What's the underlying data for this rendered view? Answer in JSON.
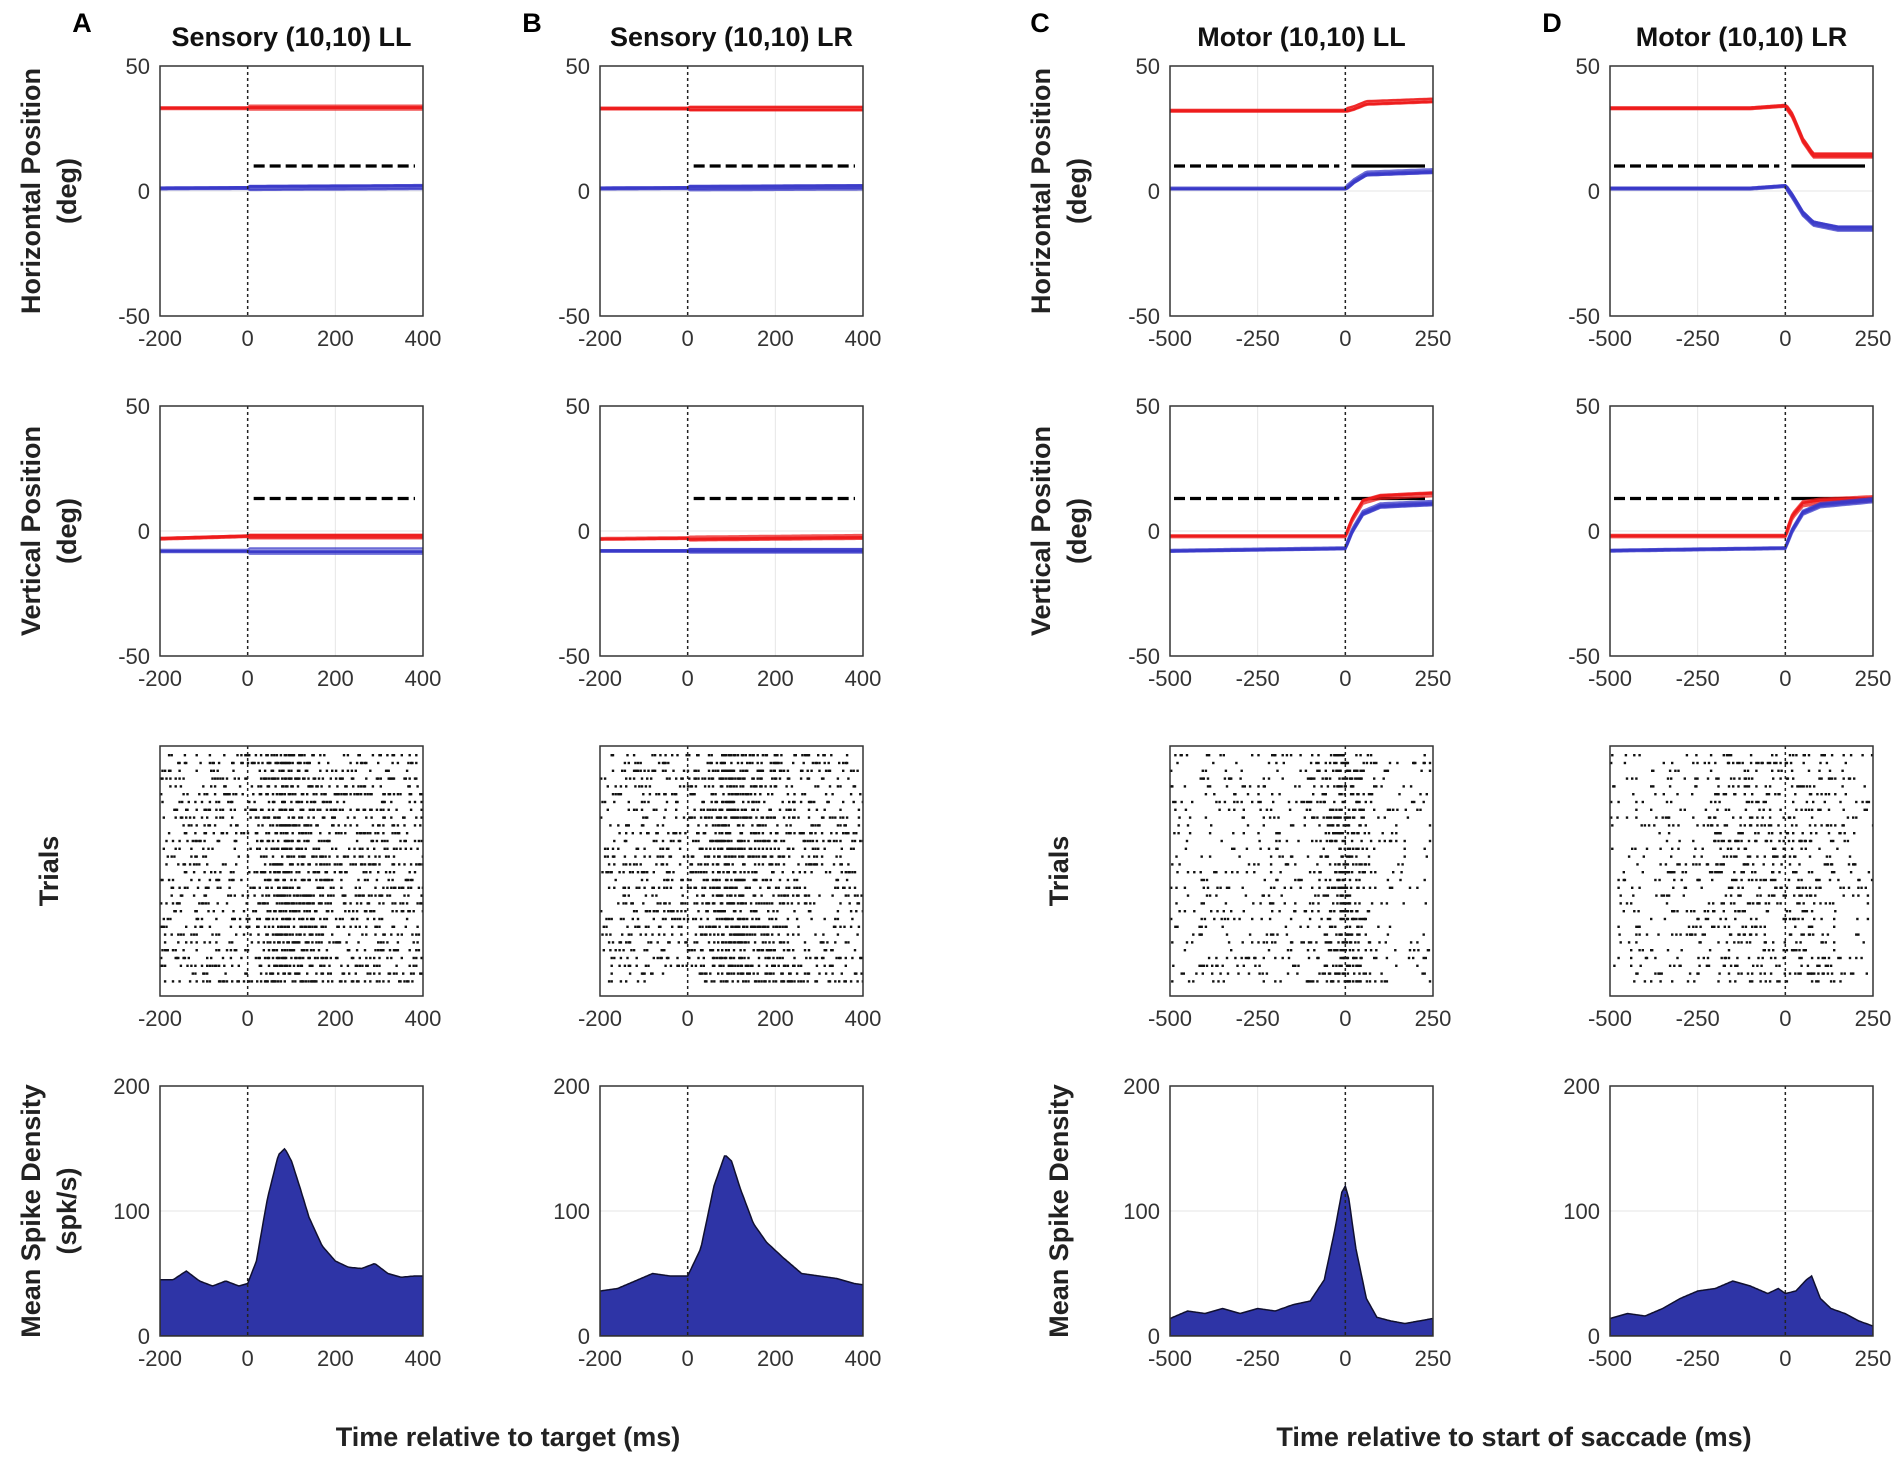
{
  "figure": {
    "xlabels": {
      "sensory": "Time relative to target (ms)",
      "motor": "Time relative to start of saccade (ms)"
    },
    "row_labels": {
      "horizontal": [
        "Horizontal Position",
        "(deg)"
      ],
      "vertical": [
        "Vertical Position",
        "(deg)"
      ],
      "raster": [
        "Trials"
      ],
      "density": [
        "Mean Spike Density",
        "(spk/s)"
      ]
    },
    "colors": {
      "red_trace": "#ee1c1c",
      "blue_trace": "#3a3ac8",
      "density_fill": "#2e34a6",
      "dashed_target": "#000000"
    }
  },
  "chart_data": [
    {
      "type": "line",
      "panel": "A",
      "column_title": "Sensory (10,10) LL",
      "row": "horizontal",
      "ylabel": "Horizontal Position (deg)",
      "xlim": [
        -200,
        400
      ],
      "ylim": [
        -50,
        50
      ],
      "xticks": [
        "-200",
        "0",
        "200",
        "400"
      ],
      "yticks": [
        "50",
        "0",
        "-50"
      ],
      "series": [
        {
          "name": "red",
          "x": [
            -200,
            400
          ],
          "y": [
            33,
            33
          ]
        },
        {
          "name": "blue",
          "x": [
            -200,
            400
          ],
          "y": [
            1,
            1.5
          ]
        }
      ],
      "target_segments": [
        {
          "x": [
            0,
            400
          ],
          "y": 10,
          "style": "dashed"
        }
      ]
    },
    {
      "type": "line",
      "panel": "B",
      "column_title": "Sensory (10,10) LR",
      "row": "horizontal",
      "ylabel": "Horizontal Position (deg)",
      "xlim": [
        -200,
        400
      ],
      "ylim": [
        -50,
        50
      ],
      "xticks": [
        "-200",
        "0",
        "200",
        "400"
      ],
      "yticks": [
        "50",
        "0",
        "-50"
      ],
      "series": [
        {
          "name": "red",
          "x": [
            -200,
            400
          ],
          "y": [
            33,
            33
          ]
        },
        {
          "name": "blue",
          "x": [
            -200,
            400
          ],
          "y": [
            1,
            1.5
          ]
        }
      ],
      "target_segments": [
        {
          "x": [
            0,
            400
          ],
          "y": 10,
          "style": "dashed"
        }
      ]
    },
    {
      "type": "line",
      "panel": "C",
      "column_title": "Motor (10,10) LL",
      "row": "horizontal",
      "ylabel": "Horizontal Position (deg)",
      "xlim": [
        -500,
        250
      ],
      "ylim": [
        -50,
        50
      ],
      "xticks": [
        "-500",
        "-250",
        "0",
        "250"
      ],
      "yticks": [
        "50",
        "0",
        "-50"
      ],
      "series": [
        {
          "name": "red",
          "x": [
            -500,
            0,
            25,
            60,
            250
          ],
          "y": [
            32,
            32,
            33,
            35,
            36
          ]
        },
        {
          "name": "blue",
          "x": [
            -500,
            0,
            25,
            60,
            250
          ],
          "y": [
            1,
            1,
            4,
            7,
            8
          ]
        }
      ],
      "target_segments": [
        {
          "x": [
            -500,
            0
          ],
          "y": 10,
          "style": "dashed"
        },
        {
          "x": [
            0,
            250
          ],
          "y": 10,
          "style": "solid"
        }
      ]
    },
    {
      "type": "line",
      "panel": "D",
      "column_title": "Motor (10,10) LR",
      "row": "horizontal",
      "ylabel": "Horizontal Position (deg)",
      "xlim": [
        -500,
        250
      ],
      "ylim": [
        -50,
        50
      ],
      "xticks": [
        "-500",
        "-250",
        "0",
        "250"
      ],
      "yticks": [
        "50",
        "0",
        "-50"
      ],
      "series": [
        {
          "name": "red",
          "x": [
            -500,
            -100,
            0,
            20,
            50,
            80,
            250
          ],
          "y": [
            33,
            33,
            34,
            30,
            20,
            14,
            14
          ]
        },
        {
          "name": "blue",
          "x": [
            -500,
            -100,
            0,
            20,
            50,
            80,
            150,
            250
          ],
          "y": [
            1,
            1,
            2,
            -2,
            -9,
            -13,
            -15,
            -15
          ]
        }
      ],
      "target_segments": [
        {
          "x": [
            -500,
            0
          ],
          "y": 10,
          "style": "dashed"
        },
        {
          "x": [
            0,
            250
          ],
          "y": 10,
          "style": "solid"
        }
      ]
    },
    {
      "type": "line",
      "panel": "A",
      "row": "vertical",
      "ylabel": "Vertical Position (deg)",
      "xlim": [
        -200,
        400
      ],
      "ylim": [
        -50,
        50
      ],
      "xticks": [
        "-200",
        "0",
        "200",
        "400"
      ],
      "yticks": [
        "50",
        "0",
        "-50"
      ],
      "series": [
        {
          "name": "red",
          "x": [
            -200,
            0,
            400
          ],
          "y": [
            -3,
            -2,
            -2
          ]
        },
        {
          "name": "blue",
          "x": [
            -200,
            400
          ],
          "y": [
            -8,
            -8
          ]
        }
      ],
      "target_segments": [
        {
          "x": [
            0,
            400
          ],
          "y": 13,
          "style": "dashed"
        }
      ]
    },
    {
      "type": "line",
      "panel": "B",
      "row": "vertical",
      "ylabel": "Vertical Position (deg)",
      "xlim": [
        -200,
        400
      ],
      "ylim": [
        -50,
        50
      ],
      "xticks": [
        "-200",
        "0",
        "200",
        "400"
      ],
      "yticks": [
        "50",
        "0",
        "-50"
      ],
      "series": [
        {
          "name": "red",
          "x": [
            -200,
            400
          ],
          "y": [
            -3,
            -2
          ]
        },
        {
          "name": "blue",
          "x": [
            -200,
            400
          ],
          "y": [
            -8,
            -8
          ]
        }
      ],
      "target_segments": [
        {
          "x": [
            0,
            400
          ],
          "y": 13,
          "style": "dashed"
        }
      ]
    },
    {
      "type": "line",
      "panel": "C",
      "row": "vertical",
      "ylabel": "Vertical Position (deg)",
      "xlim": [
        -500,
        250
      ],
      "ylim": [
        -50,
        50
      ],
      "xticks": [
        "-500",
        "-250",
        "0",
        "250"
      ],
      "yticks": [
        "50",
        "0",
        "-50"
      ],
      "series": [
        {
          "name": "red",
          "x": [
            -500,
            0,
            20,
            50,
            100,
            250
          ],
          "y": [
            -2,
            -2,
            5,
            12,
            14,
            15
          ]
        },
        {
          "name": "blue",
          "x": [
            -500,
            0,
            20,
            50,
            100,
            250
          ],
          "y": [
            -8,
            -7,
            0,
            7,
            10,
            11
          ]
        }
      ],
      "target_segments": [
        {
          "x": [
            -500,
            0
          ],
          "y": 13,
          "style": "dashed"
        },
        {
          "x": [
            0,
            250
          ],
          "y": 13,
          "style": "solid"
        }
      ]
    },
    {
      "type": "line",
      "panel": "D",
      "row": "vertical",
      "ylabel": "Vertical Position (deg)",
      "xlim": [
        -500,
        250
      ],
      "ylim": [
        -50,
        50
      ],
      "xticks": [
        "-500",
        "-250",
        "0",
        "250"
      ],
      "yticks": [
        "50",
        "0",
        "-50"
      ],
      "series": [
        {
          "name": "red",
          "x": [
            -500,
            0,
            20,
            50,
            100,
            250
          ],
          "y": [
            -2,
            -2,
            6,
            11,
            12,
            13
          ]
        },
        {
          "name": "blue",
          "x": [
            -500,
            0,
            20,
            50,
            100,
            250
          ],
          "y": [
            -8,
            -7,
            0,
            7,
            10,
            12
          ]
        }
      ],
      "target_segments": [
        {
          "x": [
            -500,
            0
          ],
          "y": 13,
          "style": "dashed"
        },
        {
          "x": [
            0,
            250
          ],
          "y": 13,
          "style": "solid"
        }
      ]
    },
    {
      "type": "scatter",
      "panel": "A",
      "row": "raster",
      "ylabel": "Trials",
      "xlim": [
        -200,
        400
      ],
      "xticks": [
        "-200",
        "0",
        "200",
        "400"
      ],
      "trials": 30,
      "rate_profile": {
        "x": [
          -200,
          0,
          40,
          80,
          120,
          180,
          250,
          320,
          400
        ],
        "rate": [
          45,
          40,
          90,
          150,
          120,
          70,
          55,
          55,
          50
        ]
      }
    },
    {
      "type": "scatter",
      "panel": "B",
      "row": "raster",
      "ylabel": "Trials",
      "xlim": [
        -200,
        400
      ],
      "xticks": [
        "-200",
        "0",
        "200",
        "400"
      ],
      "trials": 30,
      "rate_profile": {
        "x": [
          -200,
          -80,
          0,
          40,
          85,
          130,
          200,
          300,
          400
        ],
        "rate": [
          38,
          50,
          48,
          80,
          145,
          110,
          70,
          48,
          42
        ]
      }
    },
    {
      "type": "scatter",
      "panel": "C",
      "row": "raster",
      "ylabel": "Trials",
      "xlim": [
        -500,
        250
      ],
      "xticks": [
        "-500",
        "-250",
        "0",
        "250"
      ],
      "trials": 30,
      "rate_profile": {
        "x": [
          -500,
          -300,
          -100,
          -40,
          0,
          40,
          100,
          250
        ],
        "rate": [
          15,
          20,
          28,
          60,
          120,
          55,
          15,
          12
        ]
      }
    },
    {
      "type": "scatter",
      "panel": "D",
      "row": "raster",
      "ylabel": "Trials",
      "xlim": [
        -500,
        250
      ],
      "xticks": [
        "-500",
        "-250",
        "0",
        "250"
      ],
      "trials": 30,
      "rate_profile": {
        "x": [
          -500,
          -350,
          -250,
          -150,
          -50,
          0,
          70,
          150,
          250
        ],
        "rate": [
          15,
          22,
          30,
          42,
          35,
          30,
          45,
          20,
          10
        ]
      }
    },
    {
      "type": "area",
      "panel": "A",
      "row": "density",
      "ylabel": "Mean Spike Density (spk/s)",
      "xlim": [
        -200,
        400
      ],
      "ylim": [
        0,
        200
      ],
      "xticks": [
        "-200",
        "0",
        "200",
        "400"
      ],
      "yticks": [
        "200",
        "100",
        "0"
      ],
      "x": [
        -200,
        -170,
        -140,
        -110,
        -80,
        -50,
        -20,
        0,
        20,
        45,
        70,
        85,
        100,
        120,
        140,
        170,
        200,
        230,
        260,
        290,
        320,
        350,
        380,
        400
      ],
      "y": [
        45,
        45,
        52,
        44,
        40,
        44,
        40,
        42,
        60,
        110,
        145,
        150,
        140,
        118,
        95,
        72,
        60,
        55,
        54,
        58,
        50,
        47,
        48,
        48
      ]
    },
    {
      "type": "area",
      "panel": "B",
      "row": "density",
      "ylabel": "Mean Spike Density (spk/s)",
      "xlim": [
        -200,
        400
      ],
      "ylim": [
        0,
        200
      ],
      "xticks": [
        "-200",
        "0",
        "200",
        "400"
      ],
      "yticks": [
        "200",
        "100",
        "0"
      ],
      "x": [
        -200,
        -160,
        -120,
        -80,
        -40,
        0,
        30,
        60,
        85,
        100,
        120,
        150,
        180,
        220,
        260,
        300,
        340,
        380,
        400
      ],
      "y": [
        36,
        38,
        44,
        50,
        48,
        48,
        70,
        120,
        145,
        140,
        118,
        90,
        75,
        62,
        50,
        48,
        46,
        42,
        41
      ]
    },
    {
      "type": "area",
      "panel": "C",
      "row": "density",
      "ylabel": "Mean Spike Density (spk/s)",
      "xlim": [
        -500,
        250
      ],
      "ylim": [
        0,
        200
      ],
      "xticks": [
        "-500",
        "-250",
        "0",
        "250"
      ],
      "yticks": [
        "200",
        "100",
        "0"
      ],
      "x": [
        -500,
        -450,
        -400,
        -350,
        -300,
        -250,
        -200,
        -150,
        -100,
        -60,
        -30,
        -10,
        0,
        10,
        30,
        60,
        90,
        130,
        170,
        210,
        250
      ],
      "y": [
        14,
        20,
        18,
        22,
        18,
        22,
        20,
        25,
        28,
        45,
        85,
        115,
        120,
        110,
        70,
        30,
        15,
        12,
        10,
        12,
        14
      ]
    },
    {
      "type": "area",
      "panel": "D",
      "row": "density",
      "ylabel": "Mean Spike Density (spk/s)",
      "xlim": [
        -500,
        250
      ],
      "ylim": [
        0,
        200
      ],
      "xticks": [
        "-500",
        "-250",
        "0",
        "250"
      ],
      "yticks": [
        "200",
        "100",
        "0"
      ],
      "x": [
        -500,
        -450,
        -400,
        -350,
        -300,
        -250,
        -200,
        -150,
        -100,
        -50,
        -20,
        0,
        30,
        60,
        75,
        100,
        130,
        170,
        210,
        250
      ],
      "y": [
        14,
        18,
        16,
        22,
        30,
        36,
        38,
        44,
        40,
        34,
        38,
        34,
        36,
        45,
        48,
        30,
        22,
        18,
        12,
        8
      ]
    }
  ]
}
